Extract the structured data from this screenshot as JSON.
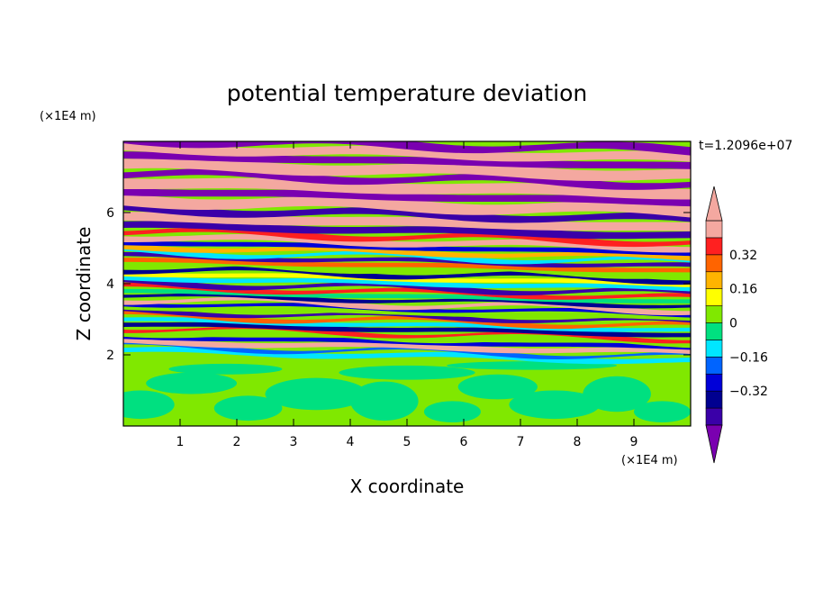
{
  "chart_data": {
    "type": "heatmap",
    "title": "potential temperature deviation",
    "time_label": "t=1.2096e+07",
    "xlabel": "X coordinate",
    "ylabel": "Z coordinate",
    "x_unit": "(×1E4 m)",
    "y_unit": "(×1E4 m)",
    "xlim": [
      0,
      10
    ],
    "ylim": [
      0,
      8
    ],
    "x_ticks": [
      "1",
      "2",
      "3",
      "4",
      "5",
      "6",
      "7",
      "8",
      "9"
    ],
    "y_ticks": [
      "2",
      "4",
      "6"
    ],
    "colorbar": {
      "levels": [
        -0.48,
        -0.4,
        -0.32,
        -0.24,
        -0.16,
        -0.08,
        0,
        0.08,
        0.16,
        0.24,
        0.32,
        0.4,
        0.48
      ],
      "tick_labels": [
        "0.32",
        "0.16",
        "0",
        "−0.16",
        "−0.32"
      ],
      "tick_values": [
        0.32,
        0.16,
        0,
        -0.16,
        -0.32
      ],
      "colors": [
        "#7a00b0",
        "#3a00a8",
        "#000090",
        "#0000d8",
        "#0064ff",
        "#00e6ff",
        "#00e080",
        "#80e800",
        "#ffff00",
        "#ffb400",
        "#ff6400",
        "#ff2020",
        "#f4a8a0"
      ],
      "extend": "both"
    },
    "layers": [
      {
        "z": [
          0.0,
          1.8
        ],
        "description_color": "#80e800"
      },
      {
        "z": [
          1.8,
          3.0
        ],
        "pattern": "alternating bands of blue, cyan, green, red, pink"
      },
      {
        "z": [
          3.0,
          5.0
        ],
        "pattern": "dense alternating thin bands of red, yellow, green, blue, purple"
      },
      {
        "z": [
          5.0,
          8.0
        ],
        "pattern": "alternating pink and purple bands"
      }
    ]
  }
}
